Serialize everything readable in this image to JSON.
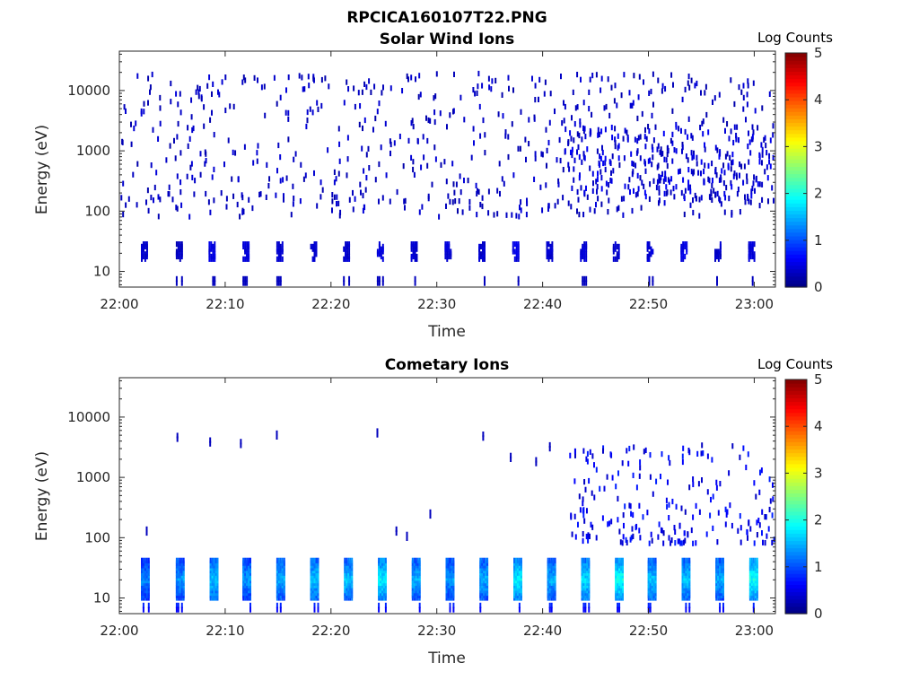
{
  "figure": {
    "filename_title": "RPCICA160107T22.PNG"
  },
  "colormap": {
    "name": "jet",
    "min": 0,
    "max": 5
  },
  "chart_data": [
    {
      "type": "heatmap",
      "title": "Solar Wind Ions",
      "xlabel": "Time",
      "ylabel": "Energy (eV)",
      "x_tick_labels": [
        "22:00",
        "22:10",
        "22:20",
        "22:30",
        "22:40",
        "22:50",
        "23:00"
      ],
      "x_tick_minutes": [
        0,
        10,
        20,
        30,
        40,
        50,
        60
      ],
      "xlim_minutes_after_22_00": [
        0,
        62
      ],
      "y_scale": "log",
      "y_tick_labels": [
        "10",
        "100",
        "1000",
        "10000"
      ],
      "y_tick_values": [
        10,
        100,
        1000,
        10000
      ],
      "ylim": [
        5.5,
        45000
      ],
      "colorbar": {
        "label": "Log Counts",
        "tick_labels": [
          "0",
          "1",
          "2",
          "3",
          "4",
          "5"
        ],
        "min": 0,
        "max": 5
      },
      "low_energy_bursts": {
        "time_minutes": [
          2.2,
          5.5,
          8.6,
          11.8,
          15.0,
          18.2,
          21.3,
          24.5,
          27.7,
          30.9,
          34.1,
          37.3,
          40.5,
          43.7,
          46.8,
          50.0,
          53.2,
          56.4,
          59.6
        ],
        "energy_range_eV": [
          16,
          30
        ],
        "log_counts": [
          0.3,
          0.25,
          0.4,
          0.35,
          0.3,
          0.3,
          0.3,
          0.4,
          0.3,
          0.35,
          0.3,
          0.4,
          0.3,
          0.35,
          0.3,
          0.35,
          0.4,
          0.3,
          0.35
        ]
      },
      "scatter_band_eV": [
        80,
        20000
      ],
      "enhanced_interval_minutes": [
        42,
        62
      ],
      "peak_log_counts": 0.6
    },
    {
      "type": "heatmap",
      "title": "Cometary Ions",
      "xlabel": "Time",
      "ylabel": "Energy (eV)",
      "x_tick_labels": [
        "22:00",
        "22:10",
        "22:20",
        "22:30",
        "22:40",
        "22:50",
        "23:00"
      ],
      "x_tick_minutes": [
        0,
        10,
        20,
        30,
        40,
        50,
        60
      ],
      "xlim_minutes_after_22_00": [
        0,
        62
      ],
      "y_scale": "log",
      "y_tick_labels": [
        "10",
        "100",
        "1000",
        "10000"
      ],
      "y_tick_values": [
        10,
        100,
        1000,
        10000
      ],
      "ylim": [
        5.5,
        45000
      ],
      "colorbar": {
        "label": "Log Counts",
        "tick_labels": [
          "0",
          "1",
          "2",
          "3",
          "4",
          "5"
        ],
        "min": 0,
        "max": 5
      },
      "low_energy_bursts": {
        "time_minutes": [
          2.2,
          5.5,
          8.7,
          11.8,
          15.0,
          18.2,
          21.4,
          24.6,
          27.8,
          31.0,
          34.2,
          37.4,
          40.6,
          43.8,
          47.0,
          50.1,
          53.3,
          56.5,
          59.7
        ],
        "energy_range_eV": [
          10,
          45
        ],
        "log_counts": [
          1.1,
          1.2,
          1.4,
          1.2,
          1.3,
          1.4,
          1.4,
          1.6,
          1.3,
          1.2,
          1.3,
          1.6,
          1.3,
          1.5,
          1.7,
          1.4,
          1.4,
          1.3,
          1.7
        ]
      },
      "sparse_high_energy_points": [
        {
          "t": 5.4,
          "e": 4300
        },
        {
          "t": 8.5,
          "e": 3600
        },
        {
          "t": 11.4,
          "e": 3400
        },
        {
          "t": 14.8,
          "e": 4700
        },
        {
          "t": 24.3,
          "e": 5100
        },
        {
          "t": 34.3,
          "e": 4500
        },
        {
          "t": 36.9,
          "e": 2000
        },
        {
          "t": 39.3,
          "e": 1700
        },
        {
          "t": 40.6,
          "e": 3000
        },
        {
          "t": 43.0,
          "e": 2300
        },
        {
          "t": 26.1,
          "e": 120
        },
        {
          "t": 27.1,
          "e": 98
        },
        {
          "t": 29.3,
          "e": 230
        },
        {
          "t": 2.5,
          "e": 120
        }
      ],
      "enhanced_interval_minutes": [
        42.5,
        62
      ],
      "enhanced_energy_eV": [
        80,
        3500
      ],
      "peak_log_counts": 1.9
    }
  ]
}
